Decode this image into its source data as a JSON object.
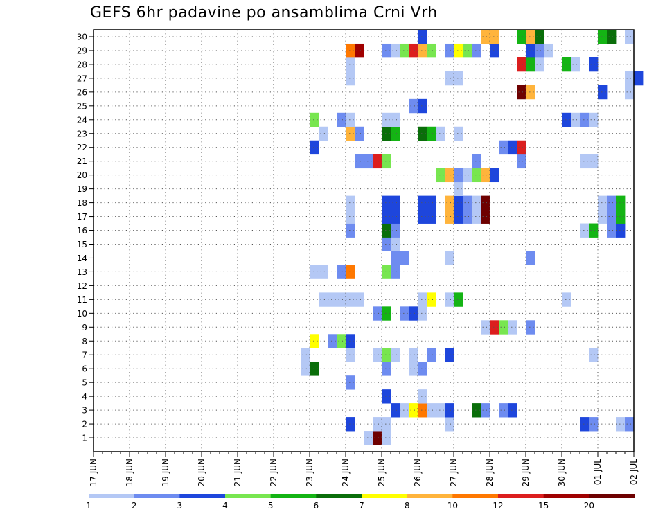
{
  "chart_data": {
    "type": "heatmap",
    "title": "GEFS 6hr padavine po ansamblima Crni Vrh",
    "xlabel": "",
    "ylabel": "",
    "x_start": "17 JUN",
    "x_step_hours": 6,
    "x_tick_labels": [
      "17 JUN",
      "18 JUN",
      "19 JUN",
      "20 JUN",
      "21 JUN",
      "22 JUN",
      "23 JUN",
      "24 JUN",
      "25 JUN",
      "26 JUN",
      "27 JUN",
      "28 JUN",
      "29 JUN",
      "30 JUN",
      "01 JUL",
      "02 JUL"
    ],
    "y_tick_labels": [
      "1",
      "2",
      "3",
      "4",
      "5",
      "6",
      "7",
      "8",
      "9",
      "10",
      "11",
      "12",
      "13",
      "14",
      "15",
      "16",
      "17",
      "18",
      "19",
      "20",
      "21",
      "22",
      "23",
      "24",
      "25",
      "26",
      "27",
      "28",
      "29",
      "30"
    ],
    "grid": true,
    "legend_placement": "bottom",
    "colorbar": {
      "labels": [
        "1",
        "2",
        "3",
        "4",
        "5",
        "6",
        "7",
        "8",
        "10",
        "12",
        "15",
        "20"
      ],
      "colors": [
        "#b4c8f5",
        "#6e8cf0",
        "#1e46dc",
        "#78e650",
        "#14b414",
        "#0a6e0a",
        "#ffff00",
        "#ffb43c",
        "#ff7800",
        "#dc1e1e",
        "#a00000",
        "#6e0000"
      ]
    },
    "cells": [
      {
        "m": 1,
        "x": 30,
        "c": 1
      },
      {
        "m": 1,
        "x": 31,
        "c": 12
      },
      {
        "m": 1,
        "x": 32,
        "c": 1
      },
      {
        "m": 2,
        "x": 28,
        "c": 3
      },
      {
        "m": 2,
        "x": 31,
        "c": 1
      },
      {
        "m": 2,
        "x": 32,
        "c": 1
      },
      {
        "m": 2,
        "x": 39,
        "c": 1
      },
      {
        "m": 2,
        "x": 54,
        "c": 3
      },
      {
        "m": 2,
        "x": 55,
        "c": 2
      },
      {
        "m": 2,
        "x": 58,
        "c": 1
      },
      {
        "m": 2,
        "x": 59,
        "c": 2
      },
      {
        "m": 3,
        "x": 33,
        "c": 3
      },
      {
        "m": 3,
        "x": 34,
        "c": 1
      },
      {
        "m": 3,
        "x": 35,
        "c": 7
      },
      {
        "m": 3,
        "x": 36,
        "c": 9
      },
      {
        "m": 3,
        "x": 37,
        "c": 1
      },
      {
        "m": 3,
        "x": 38,
        "c": 1
      },
      {
        "m": 3,
        "x": 39,
        "c": 3
      },
      {
        "m": 3,
        "x": 42,
        "c": 6
      },
      {
        "m": 3,
        "x": 43,
        "c": 2
      },
      {
        "m": 3,
        "x": 45,
        "c": 2
      },
      {
        "m": 3,
        "x": 46,
        "c": 3
      },
      {
        "m": 4,
        "x": 32,
        "c": 3
      },
      {
        "m": 4,
        "x": 36,
        "c": 1
      },
      {
        "m": 5,
        "x": 28,
        "c": 2
      },
      {
        "m": 6,
        "x": 23,
        "c": 1
      },
      {
        "m": 6,
        "x": 24,
        "c": 6
      },
      {
        "m": 6,
        "x": 32,
        "c": 2
      },
      {
        "m": 6,
        "x": 35,
        "c": 1
      },
      {
        "m": 6,
        "x": 36,
        "c": 2
      },
      {
        "m": 7,
        "x": 23,
        "c": 1
      },
      {
        "m": 7,
        "x": 28,
        "c": 1
      },
      {
        "m": 7,
        "x": 31,
        "c": 1
      },
      {
        "m": 7,
        "x": 32,
        "c": 4
      },
      {
        "m": 7,
        "x": 33,
        "c": 1
      },
      {
        "m": 7,
        "x": 35,
        "c": 1
      },
      {
        "m": 7,
        "x": 37,
        "c": 2
      },
      {
        "m": 7,
        "x": 39,
        "c": 3
      },
      {
        "m": 7,
        "x": 55,
        "c": 1
      },
      {
        "m": 8,
        "x": 24,
        "c": 7
      },
      {
        "m": 8,
        "x": 26,
        "c": 2
      },
      {
        "m": 8,
        "x": 27,
        "c": 4
      },
      {
        "m": 8,
        "x": 28,
        "c": 3
      },
      {
        "m": 9,
        "x": 43,
        "c": 1
      },
      {
        "m": 9,
        "x": 44,
        "c": 10
      },
      {
        "m": 9,
        "x": 45,
        "c": 4
      },
      {
        "m": 9,
        "x": 46,
        "c": 1
      },
      {
        "m": 9,
        "x": 48,
        "c": 2
      },
      {
        "m": 10,
        "x": 31,
        "c": 2
      },
      {
        "m": 10,
        "x": 32,
        "c": 5
      },
      {
        "m": 10,
        "x": 34,
        "c": 2
      },
      {
        "m": 10,
        "x": 35,
        "c": 3
      },
      {
        "m": 10,
        "x": 36,
        "c": 1
      },
      {
        "m": 11,
        "x": 25,
        "c": 1
      },
      {
        "m": 11,
        "x": 26,
        "c": 1
      },
      {
        "m": 11,
        "x": 27,
        "c": 1
      },
      {
        "m": 11,
        "x": 28,
        "c": 1
      },
      {
        "m": 11,
        "x": 29,
        "c": 1
      },
      {
        "m": 11,
        "x": 36,
        "c": 1
      },
      {
        "m": 11,
        "x": 37,
        "c": 7
      },
      {
        "m": 11,
        "x": 39,
        "c": 1
      },
      {
        "m": 11,
        "x": 40,
        "c": 5
      },
      {
        "m": 11,
        "x": 52,
        "c": 1
      },
      {
        "m": 13,
        "x": 24,
        "c": 1
      },
      {
        "m": 13,
        "x": 25,
        "c": 1
      },
      {
        "m": 13,
        "x": 27,
        "c": 2
      },
      {
        "m": 13,
        "x": 28,
        "c": 9
      },
      {
        "m": 13,
        "x": 32,
        "c": 4
      },
      {
        "m": 13,
        "x": 33,
        "c": 2
      },
      {
        "m": 14,
        "x": 33,
        "c": 2
      },
      {
        "m": 14,
        "x": 34,
        "c": 2
      },
      {
        "m": 14,
        "x": 39,
        "c": 1
      },
      {
        "m": 14,
        "x": 48,
        "c": 2
      },
      {
        "m": 15,
        "x": 32,
        "c": 2
      },
      {
        "m": 15,
        "x": 33,
        "c": 1
      },
      {
        "m": 16,
        "x": 28,
        "c": 2
      },
      {
        "m": 16,
        "x": 32,
        "c": 6
      },
      {
        "m": 16,
        "x": 33,
        "c": 2
      },
      {
        "m": 16,
        "x": 54,
        "c": 1
      },
      {
        "m": 16,
        "x": 55,
        "c": 5
      },
      {
        "m": 16,
        "x": 57,
        "c": 2
      },
      {
        "m": 16,
        "x": 58,
        "c": 3
      },
      {
        "m": 17,
        "x": 28,
        "c": 1
      },
      {
        "m": 17,
        "x": 32,
        "c": 3
      },
      {
        "m": 17,
        "x": 33,
        "c": 3
      },
      {
        "m": 17,
        "x": 36,
        "c": 3
      },
      {
        "m": 17,
        "x": 37,
        "c": 3
      },
      {
        "m": 17,
        "x": 39,
        "c": 8
      },
      {
        "m": 17,
        "x": 40,
        "c": 3
      },
      {
        "m": 17,
        "x": 41,
        "c": 2
      },
      {
        "m": 17,
        "x": 42,
        "c": 1
      },
      {
        "m": 17,
        "x": 43,
        "c": 12
      },
      {
        "m": 17,
        "x": 56,
        "c": 1
      },
      {
        "m": 17,
        "x": 57,
        "c": 2
      },
      {
        "m": 17,
        "x": 58,
        "c": 5
      },
      {
        "m": 18,
        "x": 28,
        "c": 1
      },
      {
        "m": 18,
        "x": 32,
        "c": 3
      },
      {
        "m": 18,
        "x": 33,
        "c": 3
      },
      {
        "m": 18,
        "x": 36,
        "c": 3
      },
      {
        "m": 18,
        "x": 37,
        "c": 3
      },
      {
        "m": 18,
        "x": 39,
        "c": 8
      },
      {
        "m": 18,
        "x": 40,
        "c": 3
      },
      {
        "m": 18,
        "x": 41,
        "c": 2
      },
      {
        "m": 18,
        "x": 42,
        "c": 1
      },
      {
        "m": 18,
        "x": 43,
        "c": 12
      },
      {
        "m": 18,
        "x": 56,
        "c": 1
      },
      {
        "m": 18,
        "x": 57,
        "c": 2
      },
      {
        "m": 18,
        "x": 58,
        "c": 5
      },
      {
        "m": 19,
        "x": 40,
        "c": 1
      },
      {
        "m": 20,
        "x": 38,
        "c": 4
      },
      {
        "m": 20,
        "x": 39,
        "c": 8
      },
      {
        "m": 20,
        "x": 40,
        "c": 2
      },
      {
        "m": 20,
        "x": 41,
        "c": 1
      },
      {
        "m": 20,
        "x": 42,
        "c": 4
      },
      {
        "m": 20,
        "x": 43,
        "c": 8
      },
      {
        "m": 20,
        "x": 44,
        "c": 3
      },
      {
        "m": 21,
        "x": 29,
        "c": 2
      },
      {
        "m": 21,
        "x": 30,
        "c": 2
      },
      {
        "m": 21,
        "x": 31,
        "c": 10
      },
      {
        "m": 21,
        "x": 32,
        "c": 4
      },
      {
        "m": 21,
        "x": 42,
        "c": 2
      },
      {
        "m": 21,
        "x": 47,
        "c": 2
      },
      {
        "m": 21,
        "x": 54,
        "c": 1
      },
      {
        "m": 21,
        "x": 55,
        "c": 1
      },
      {
        "m": 22,
        "x": 24,
        "c": 3
      },
      {
        "m": 22,
        "x": 45,
        "c": 2
      },
      {
        "m": 22,
        "x": 46,
        "c": 3
      },
      {
        "m": 22,
        "x": 47,
        "c": 10
      },
      {
        "m": 23,
        "x": 25,
        "c": 1
      },
      {
        "m": 23,
        "x": 28,
        "c": 8
      },
      {
        "m": 23,
        "x": 29,
        "c": 2
      },
      {
        "m": 23,
        "x": 32,
        "c": 6
      },
      {
        "m": 23,
        "x": 33,
        "c": 5
      },
      {
        "m": 23,
        "x": 36,
        "c": 6
      },
      {
        "m": 23,
        "x": 37,
        "c": 5
      },
      {
        "m": 23,
        "x": 38,
        "c": 1
      },
      {
        "m": 23,
        "x": 40,
        "c": 1
      },
      {
        "m": 24,
        "x": 24,
        "c": 4
      },
      {
        "m": 24,
        "x": 27,
        "c": 2
      },
      {
        "m": 24,
        "x": 28,
        "c": 1
      },
      {
        "m": 24,
        "x": 32,
        "c": 1
      },
      {
        "m": 24,
        "x": 33,
        "c": 1
      },
      {
        "m": 24,
        "x": 52,
        "c": 3
      },
      {
        "m": 24,
        "x": 53,
        "c": 1
      },
      {
        "m": 24,
        "x": 54,
        "c": 2
      },
      {
        "m": 24,
        "x": 55,
        "c": 1
      },
      {
        "m": 25,
        "x": 35,
        "c": 2
      },
      {
        "m": 25,
        "x": 36,
        "c": 3
      },
      {
        "m": 26,
        "x": 47,
        "c": 12
      },
      {
        "m": 26,
        "x": 48,
        "c": 8
      },
      {
        "m": 26,
        "x": 56,
        "c": 3
      },
      {
        "m": 26,
        "x": 59,
        "c": 1
      },
      {
        "m": 27,
        "x": 28,
        "c": 1
      },
      {
        "m": 27,
        "x": 39,
        "c": 1
      },
      {
        "m": 27,
        "x": 40,
        "c": 1
      },
      {
        "m": 27,
        "x": 59,
        "c": 1
      },
      {
        "m": 27,
        "x": 60,
        "c": 3
      },
      {
        "m": 28,
        "x": 28,
        "c": 1
      },
      {
        "m": 28,
        "x": 47,
        "c": 10
      },
      {
        "m": 28,
        "x": 48,
        "c": 5
      },
      {
        "m": 28,
        "x": 49,
        "c": 1
      },
      {
        "m": 28,
        "x": 52,
        "c": 5
      },
      {
        "m": 28,
        "x": 53,
        "c": 1
      },
      {
        "m": 28,
        "x": 55,
        "c": 3
      },
      {
        "m": 29,
        "x": 28,
        "c": 9
      },
      {
        "m": 29,
        "x": 29,
        "c": 11
      },
      {
        "m": 29,
        "x": 32,
        "c": 2
      },
      {
        "m": 29,
        "x": 33,
        "c": 1
      },
      {
        "m": 29,
        "x": 34,
        "c": 4
      },
      {
        "m": 29,
        "x": 35,
        "c": 10
      },
      {
        "m": 29,
        "x": 36,
        "c": 8
      },
      {
        "m": 29,
        "x": 37,
        "c": 4
      },
      {
        "m": 29,
        "x": 39,
        "c": 2
      },
      {
        "m": 29,
        "x": 40,
        "c": 7
      },
      {
        "m": 29,
        "x": 41,
        "c": 4
      },
      {
        "m": 29,
        "x": 42,
        "c": 2
      },
      {
        "m": 29,
        "x": 44,
        "c": 3
      },
      {
        "m": 29,
        "x": 48,
        "c": 3
      },
      {
        "m": 29,
        "x": 49,
        "c": 2
      },
      {
        "m": 29,
        "x": 50,
        "c": 1
      },
      {
        "m": 30,
        "x": 36,
        "c": 3
      },
      {
        "m": 30,
        "x": 43,
        "c": 8
      },
      {
        "m": 30,
        "x": 44,
        "c": 8
      },
      {
        "m": 30,
        "x": 47,
        "c": 5
      },
      {
        "m": 30,
        "x": 48,
        "c": 8
      },
      {
        "m": 30,
        "x": 49,
        "c": 6
      },
      {
        "m": 30,
        "x": 56,
        "c": 5
      },
      {
        "m": 30,
        "x": 57,
        "c": 6
      },
      {
        "m": 30,
        "x": 59,
        "c": 1
      }
    ]
  }
}
